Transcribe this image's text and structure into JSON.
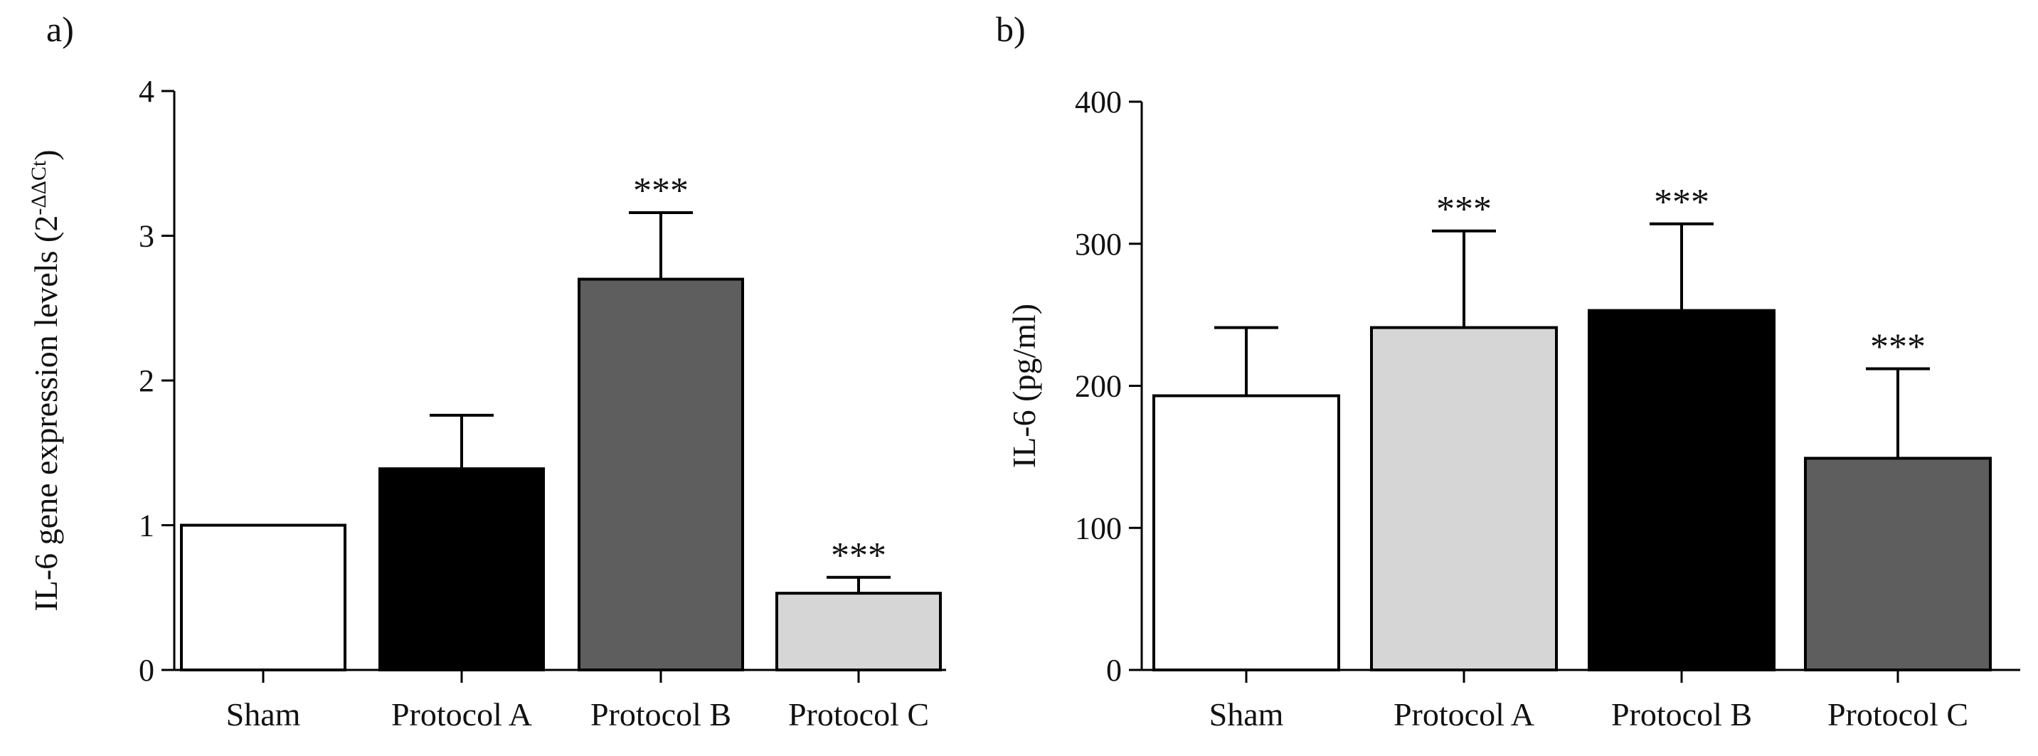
{
  "chart_data": [
    {
      "panel": "a)",
      "type": "bar",
      "ylabel": "IL-6 gene expression levels (2",
      "ylabel_sup": "-ΔΔCt",
      "ylabel_close": ")",
      "ylim": [
        0,
        4
      ],
      "yticks": [
        0,
        1,
        2,
        3,
        4
      ],
      "yticklabels": [
        "0",
        "1",
        "2",
        "3",
        "4"
      ],
      "categories": [
        "Sham",
        "Protocol A",
        "Protocol B",
        "Protocol C"
      ],
      "values": [
        1.0,
        1.39,
        2.7,
        0.53
      ],
      "errors": [
        0,
        0.37,
        0.46,
        0.11
      ],
      "colors": [
        "#ffffff",
        "#000000",
        "#5e5e5e",
        "#d6d6d6"
      ],
      "annotations": [
        "",
        "",
        "***",
        "***"
      ]
    },
    {
      "panel": "b)",
      "type": "bar",
      "ylabel": "IL-6 (pg/ml)",
      "ylim": [
        0,
        400
      ],
      "yticks": [
        0,
        100,
        200,
        300,
        400
      ],
      "yticklabels": [
        "0",
        "100",
        "200",
        "300",
        "400"
      ],
      "categories": [
        "Sham",
        "Protocol A",
        "Protocol B",
        "Protocol C"
      ],
      "values": [
        193,
        241,
        253,
        149
      ],
      "errors": [
        48,
        68,
        61,
        63
      ],
      "colors": [
        "#ffffff",
        "#d6d6d6",
        "#000000",
        "#5e5e5e"
      ],
      "annotations": [
        "",
        "***",
        "***",
        "***"
      ]
    }
  ]
}
